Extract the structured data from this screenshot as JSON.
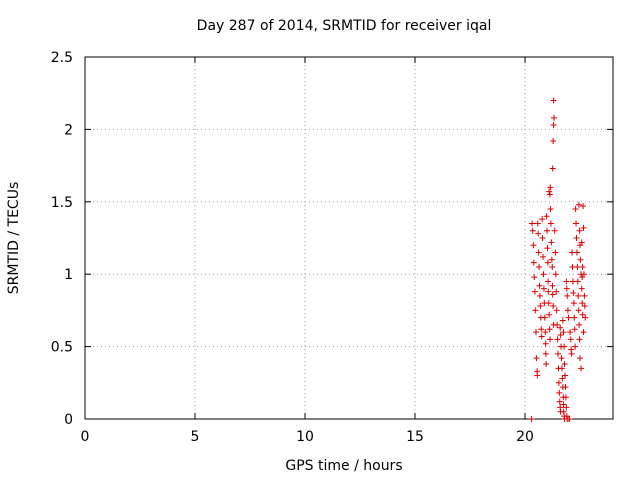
{
  "chart_data": {
    "type": "scatter",
    "title": "Day 287 of 2014, SRMTID for receiver iqal",
    "xlabel": "GPS time / hours",
    "ylabel": "SRMTID / TECUs",
    "xlim": [
      0,
      24
    ],
    "ylim": [
      0,
      2.5
    ],
    "xticks": [
      0,
      5,
      10,
      15,
      20
    ],
    "yticks": [
      0,
      0.5,
      1,
      1.5,
      2,
      2.5
    ],
    "xtick_labels": [
      "0",
      "5",
      "10",
      "15",
      "20"
    ],
    "ytick_labels": [
      "0",
      "0.5",
      "1",
      "1.5",
      "2",
      "2.5"
    ],
    "grid": true,
    "marker": "+",
    "color": "#e00000",
    "series": [
      {
        "name": "SRMTID",
        "points": [
          [
            20.3,
            0.0
          ],
          [
            20.32,
            1.35
          ],
          [
            20.35,
            1.3
          ],
          [
            20.38,
            1.2
          ],
          [
            20.4,
            1.08
          ],
          [
            20.42,
            0.98
          ],
          [
            20.45,
            0.88
          ],
          [
            20.47,
            0.75
          ],
          [
            20.5,
            0.6
          ],
          [
            20.52,
            0.42
          ],
          [
            20.55,
            0.33
          ],
          [
            20.56,
            0.3
          ],
          [
            20.58,
            1.35
          ],
          [
            20.6,
            1.28
          ],
          [
            20.62,
            1.15
          ],
          [
            20.64,
            1.05
          ],
          [
            20.66,
            0.92
          ],
          [
            20.68,
            0.85
          ],
          [
            20.7,
            0.78
          ],
          [
            20.72,
            0.7
          ],
          [
            20.74,
            0.62
          ],
          [
            20.76,
            0.57
          ],
          [
            20.78,
            1.38
          ],
          [
            20.8,
            1.25
          ],
          [
            20.82,
            1.12
          ],
          [
            20.84,
            1.0
          ],
          [
            20.86,
            0.9
          ],
          [
            20.88,
            0.8
          ],
          [
            20.9,
            0.7
          ],
          [
            20.92,
            0.6
          ],
          [
            20.94,
            0.52
          ],
          [
            20.95,
            0.45
          ],
          [
            20.96,
            0.38
          ],
          [
            20.98,
            1.4
          ],
          [
            21.0,
            1.3
          ],
          [
            21.02,
            1.18
          ],
          [
            21.04,
            1.08
          ],
          [
            21.05,
            0.95
          ],
          [
            21.06,
            0.88
          ],
          [
            21.08,
            0.8
          ],
          [
            21.1,
            0.72
          ],
          [
            21.12,
            0.62
          ],
          [
            21.14,
            0.55
          ],
          [
            21.1,
            1.57
          ],
          [
            21.13,
            1.55
          ],
          [
            21.15,
            1.6
          ],
          [
            21.16,
            1.45
          ],
          [
            21.18,
            1.35
          ],
          [
            21.2,
            1.22
          ],
          [
            21.22,
            1.1
          ],
          [
            21.24,
            1.05
          ],
          [
            21.25,
            0.92
          ],
          [
            21.26,
            0.86
          ],
          [
            21.28,
            0.78
          ],
          [
            21.3,
            0.65
          ],
          [
            21.26,
            1.73
          ],
          [
            21.28,
            1.92
          ],
          [
            21.3,
            2.03
          ],
          [
            21.32,
            2.08
          ],
          [
            21.3,
            2.2
          ],
          [
            21.35,
            1.3
          ],
          [
            21.38,
            1.15
          ],
          [
            21.4,
            1.0
          ],
          [
            21.42,
            0.88
          ],
          [
            21.44,
            0.75
          ],
          [
            21.46,
            0.65
          ],
          [
            21.48,
            0.55
          ],
          [
            21.5,
            0.45
          ],
          [
            21.52,
            0.35
          ],
          [
            21.54,
            0.25
          ],
          [
            21.56,
            0.18
          ],
          [
            21.58,
            0.12
          ],
          [
            21.6,
            0.08
          ],
          [
            21.62,
            0.05
          ],
          [
            21.6,
            0.63
          ],
          [
            21.62,
            0.58
          ],
          [
            21.64,
            0.5
          ],
          [
            21.66,
            0.42
          ],
          [
            21.68,
            0.35
          ],
          [
            21.7,
            0.28
          ],
          [
            21.72,
            0.22
          ],
          [
            21.74,
            0.15
          ],
          [
            21.75,
            0.1
          ],
          [
            21.76,
            0.05
          ],
          [
            21.78,
            0.02
          ],
          [
            21.8,
            0.0
          ],
          [
            21.72,
            0.68
          ],
          [
            21.75,
            0.6
          ],
          [
            21.78,
            0.5
          ],
          [
            21.8,
            0.38
          ],
          [
            21.82,
            0.3
          ],
          [
            21.84,
            0.22
          ],
          [
            21.86,
            0.15
          ],
          [
            21.88,
            0.08
          ],
          [
            21.9,
            0.02
          ],
          [
            21.92,
            0.0
          ],
          [
            21.88,
            0.95
          ],
          [
            21.9,
            0.9
          ],
          [
            21.92,
            0.85
          ],
          [
            21.95,
            0.75
          ],
          [
            21.98,
            0.7
          ],
          [
            22.0,
            0.0
          ],
          [
            22.02,
            0.0
          ],
          [
            22.05,
            0.6
          ],
          [
            22.08,
            0.55
          ],
          [
            22.1,
            0.48
          ],
          [
            22.12,
            0.45
          ],
          [
            22.14,
            1.15
          ],
          [
            22.16,
            1.05
          ],
          [
            22.18,
            0.95
          ],
          [
            22.2,
            0.87
          ],
          [
            22.22,
            0.8
          ],
          [
            22.24,
            0.7
          ],
          [
            22.26,
            0.62
          ],
          [
            22.28,
            0.5
          ],
          [
            22.3,
            1.45
          ],
          [
            22.32,
            1.35
          ],
          [
            22.34,
            1.25
          ],
          [
            22.36,
            1.15
          ],
          [
            22.38,
            1.05
          ],
          [
            22.4,
            0.95
          ],
          [
            22.42,
            0.85
          ],
          [
            22.44,
            0.75
          ],
          [
            22.46,
            0.65
          ],
          [
            22.48,
            0.55
          ],
          [
            22.5,
            0.42
          ],
          [
            22.45,
            1.48
          ],
          [
            22.48,
            1.3
          ],
          [
            22.5,
            1.2
          ],
          [
            22.52,
            1.1
          ],
          [
            22.55,
            1.0
          ],
          [
            22.58,
            0.9
          ],
          [
            22.6,
            0.8
          ],
          [
            22.62,
            0.72
          ],
          [
            22.64,
            1.47
          ],
          [
            22.66,
            1.32
          ],
          [
            22.68,
            1.0
          ],
          [
            22.7,
            0.85
          ],
          [
            22.72,
            0.78
          ],
          [
            22.74,
            0.7
          ],
          [
            22.6,
            0.98
          ],
          [
            22.62,
            1.05
          ],
          [
            22.66,
            0.6
          ],
          [
            22.55,
            0.35
          ],
          [
            22.58,
            1.22
          ]
        ]
      }
    ]
  }
}
